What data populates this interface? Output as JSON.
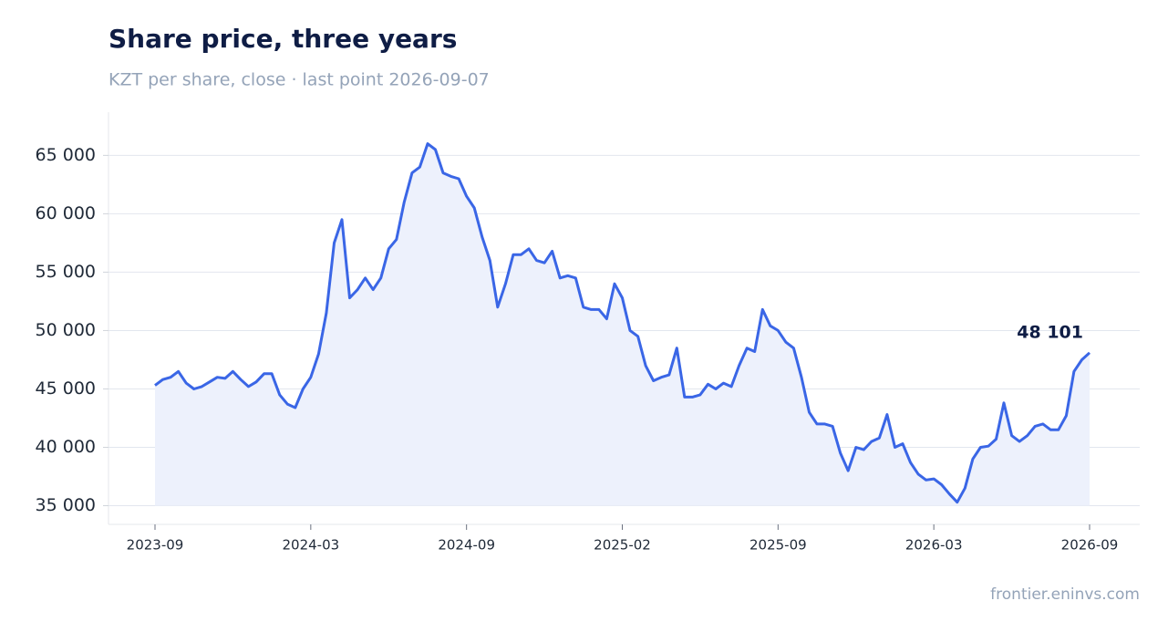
{
  "chart_data": {
    "type": "line",
    "title": "Share price, three years",
    "subtitle": "KZT per share, close · last point 2026-09-07",
    "source": "frontier.eninvs.com",
    "categories": [
      "2023-09",
      null,
      null,
      null,
      null,
      null,
      null,
      null,
      null,
      null,
      null,
      null,
      null,
      null,
      null,
      null,
      null,
      null,
      null,
      null,
      "2024-03",
      null,
      null,
      null,
      null,
      null,
      null,
      null,
      null,
      null,
      null,
      null,
      null,
      null,
      null,
      null,
      null,
      null,
      null,
      null,
      "2024-09",
      null,
      null,
      null,
      null,
      null,
      null,
      null,
      null,
      null,
      null,
      null,
      null,
      null,
      null,
      null,
      null,
      null,
      null,
      null,
      "2025-02",
      null,
      null,
      null,
      null,
      null,
      null,
      null,
      null,
      null,
      null,
      null,
      null,
      null,
      null,
      null,
      null,
      null,
      null,
      null,
      "2025-09",
      null,
      null,
      null,
      null,
      null,
      null,
      null,
      null,
      null,
      null,
      null,
      null,
      null,
      null,
      null,
      null,
      null,
      null,
      null,
      "2026-03",
      null,
      null,
      null,
      null,
      null,
      null,
      null,
      null,
      null,
      null,
      null,
      null,
      null,
      null,
      null,
      null,
      null,
      null,
      null,
      "2026-09"
    ],
    "series": [
      {
        "name": "Close",
        "color": "#3a66e6",
        "fill": "#edf1fc",
        "values": [
          45300,
          45800,
          46000,
          46500,
          45500,
          45000,
          45200,
          45600,
          46000,
          45900,
          46500,
          45800,
          45200,
          45600,
          46300,
          46300,
          44500,
          43700,
          43400,
          45000,
          46000,
          48000,
          51500,
          57500,
          59500,
          52800,
          53500,
          54500,
          53500,
          54500,
          57000,
          57800,
          61000,
          63500,
          64000,
          66000,
          65500,
          63500,
          63200,
          63000,
          61500,
          60500,
          58000,
          56000,
          52000,
          54000,
          56500,
          56500,
          57000,
          56000,
          55800,
          56800,
          54500,
          54700,
          54500,
          52000,
          51800,
          51800,
          51000,
          54000,
          52800,
          50000,
          49500,
          47000,
          45700,
          46000,
          46200,
          48500,
          44300,
          44300,
          44500,
          45400,
          45000,
          45500,
          45200,
          47000,
          48500,
          48200,
          51800,
          50400,
          50000,
          49000,
          48500,
          46000,
          43000,
          42000,
          42000,
          41800,
          39500,
          38000,
          40000,
          39800,
          40500,
          40800,
          42800,
          40000,
          40300,
          38700,
          37700,
          37200,
          37300,
          36800,
          36000,
          35300,
          36500,
          39000,
          40000,
          40100,
          40700,
          43800,
          41000,
          40500,
          41000,
          41800,
          42000,
          41500,
          41500,
          42700,
          46500,
          47500,
          48101
        ],
        "value_labels": [
          null,
          null,
          null,
          null,
          null,
          null,
          null,
          null,
          null,
          null,
          null,
          null,
          null,
          null,
          null,
          null,
          null,
          null,
          null,
          null,
          null,
          null,
          null,
          null,
          null,
          null,
          null,
          null,
          null,
          null,
          null,
          null,
          null,
          null,
          null,
          null,
          null,
          null,
          null,
          null,
          null,
          null,
          null,
          null,
          null,
          null,
          null,
          null,
          null,
          null,
          null,
          null,
          null,
          null,
          null,
          null,
          null,
          null,
          null,
          null,
          null,
          null,
          null,
          null,
          null,
          null,
          null,
          null,
          null,
          null,
          null,
          null,
          null,
          null,
          null,
          null,
          null,
          null,
          null,
          null,
          null,
          null,
          null,
          null,
          null,
          null,
          null,
          null,
          null,
          null,
          null,
          null,
          null,
          null,
          null,
          null,
          null,
          null,
          null,
          null,
          null,
          null,
          null,
          null,
          null,
          null,
          null,
          null,
          null,
          null,
          null,
          null,
          null,
          null,
          null,
          null,
          null,
          null,
          null,
          null,
          "48 101"
        ]
      }
    ],
    "ylim": [
      33400,
      68700
    ],
    "yticks": [
      {
        "value": 35000,
        "label": "35 000"
      },
      {
        "value": 40000,
        "label": "40 000"
      },
      {
        "value": 45000,
        "label": "45 000"
      },
      {
        "value": 50000,
        "label": "50 000"
      },
      {
        "value": 55000,
        "label": "55 000"
      },
      {
        "value": 60000,
        "label": "60 000"
      },
      {
        "value": 65000,
        "label": "65 000"
      }
    ],
    "grid": true
  }
}
